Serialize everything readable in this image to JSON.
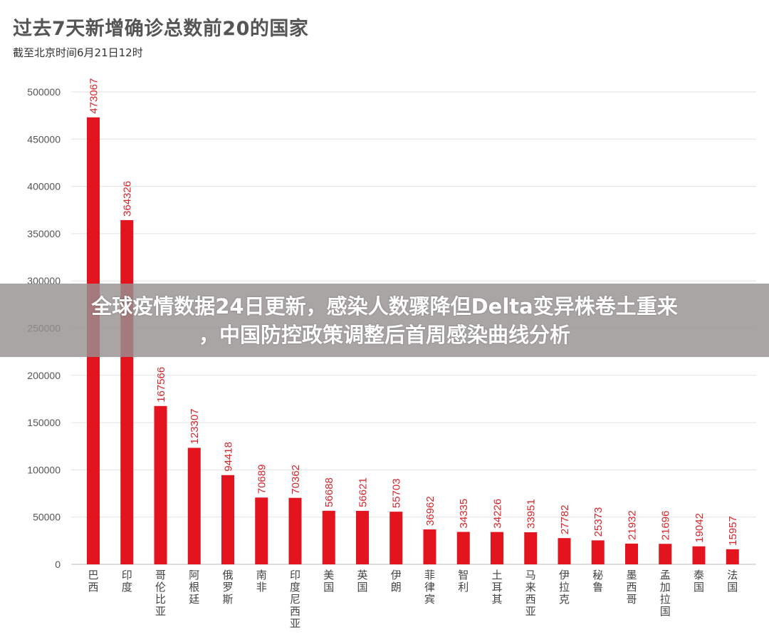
{
  "overlay": {
    "line1": "全球疫情数据24日更新，感染人数骤降但Delta变异株卷土重来",
    "line2": "，中国防控政策调整后首周感染曲线分析"
  },
  "chart_data": {
    "type": "bar",
    "title": "过去7天新增确诊总数前20的国家",
    "subtitle": "截至北京时间6月21日12时",
    "xlabel": "",
    "ylabel": "",
    "ylim": [
      0,
      500000
    ],
    "yticks": [
      0,
      50000,
      100000,
      150000,
      200000,
      250000,
      300000,
      350000,
      400000,
      450000,
      500000
    ],
    "grid": true,
    "bar_color": "#e3141d",
    "label_color": "#d7262b",
    "categories": [
      "巴西",
      "印度",
      "哥伦比亚",
      "阿根廷",
      "俄罗斯",
      "南非",
      "印度尼西亚",
      "美国",
      "英国",
      "伊朗",
      "菲律宾",
      "智利",
      "土耳其",
      "马来西亚",
      "伊拉克",
      "秘鲁",
      "墨西哥",
      "孟加拉国",
      "泰国",
      "法国"
    ],
    "values": [
      473067,
      364326,
      167566,
      123307,
      94418,
      70689,
      70362,
      56688,
      56621,
      55703,
      36962,
      34335,
      34226,
      33951,
      27782,
      25373,
      21932,
      21696,
      19042,
      15957
    ]
  }
}
